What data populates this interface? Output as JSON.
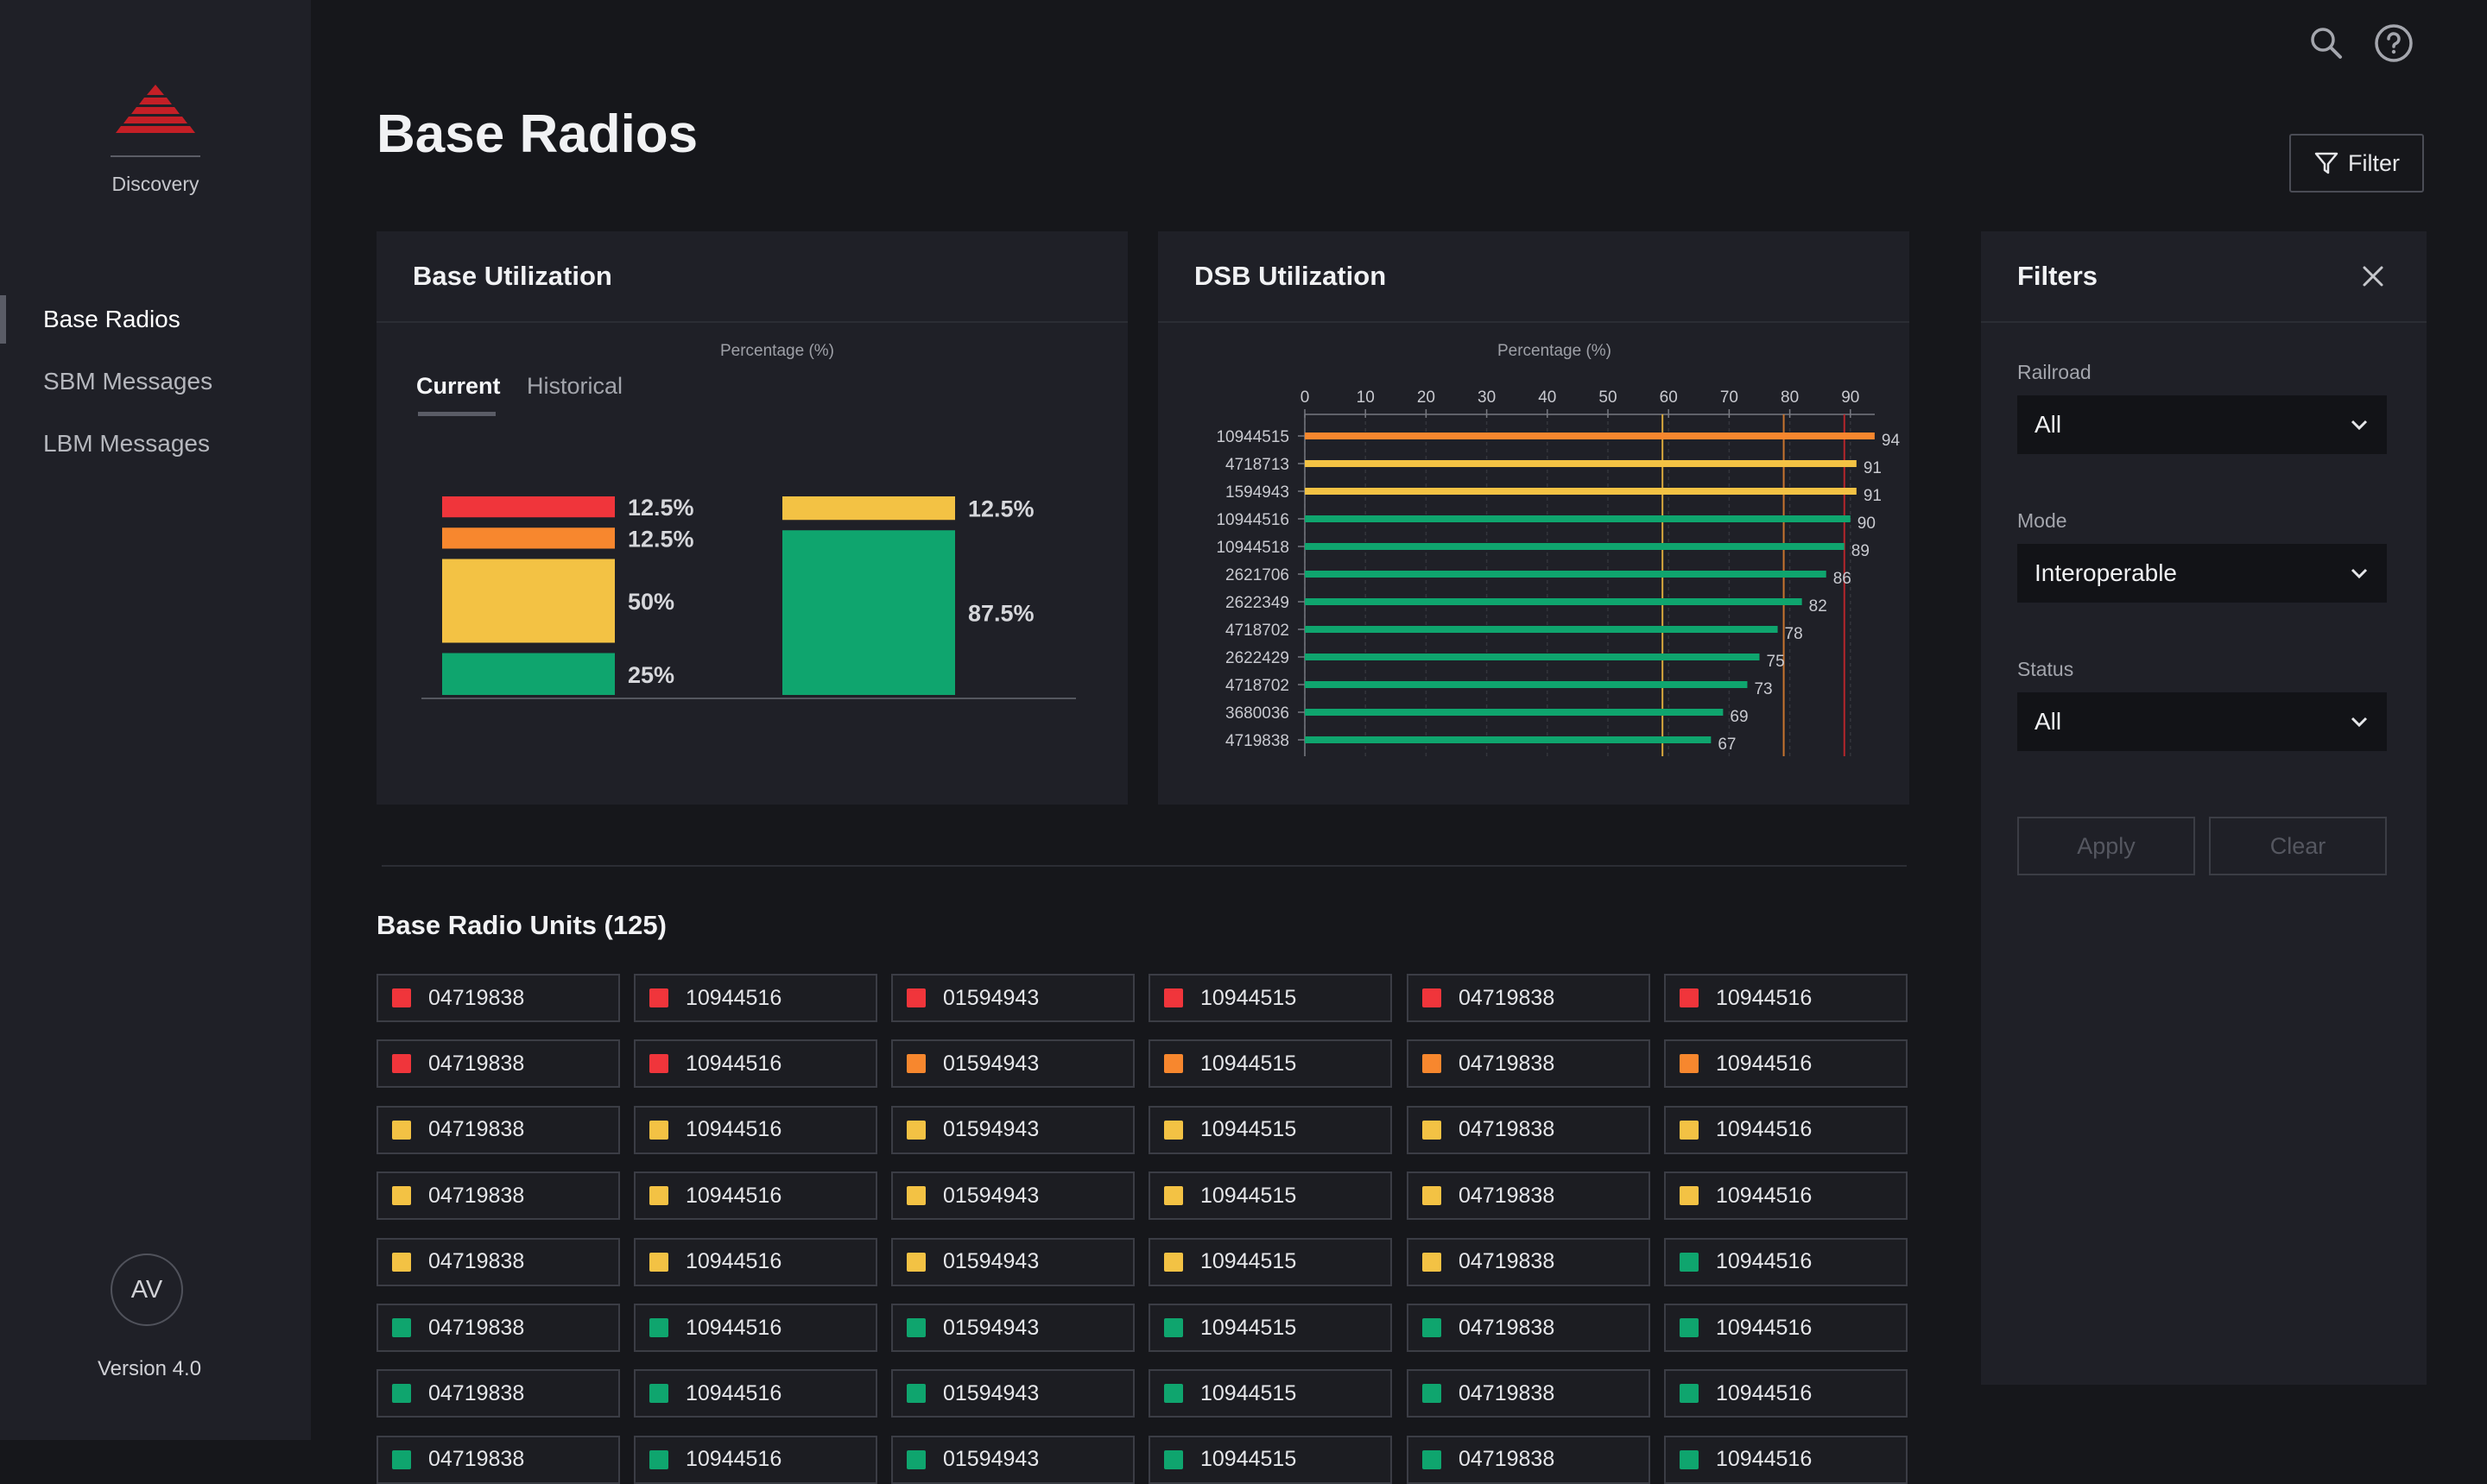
{
  "sidebar": {
    "brand": "Discovery",
    "nav": [
      "Base Radios",
      "SBM Messages",
      "LBM Messages"
    ],
    "avatar": "AV",
    "version": "Version 4.0"
  },
  "header": {
    "title": "Base Radios",
    "filter_label": "Filter",
    "icons": [
      "search-icon",
      "help-icon",
      "filter-icon"
    ]
  },
  "base_utilization": {
    "title": "Base Utilization",
    "axis_title": "Percentage (%)",
    "tabs": [
      "Current",
      "Historical"
    ],
    "active_tab": "Current"
  },
  "dsb_utilization": {
    "title": "DSB Utilization",
    "axis_title": "Percentage (%)"
  },
  "colors": {
    "red": "#f0353b",
    "orange": "#f7872e",
    "yellow": "#f3c244",
    "green": "#0fa56e",
    "threshold_yellow": "#d9a93d",
    "threshold_orange": "#c7742f",
    "threshold_red": "#b3262b"
  },
  "chart_data": [
    {
      "type": "bar",
      "title": "Base Utilization",
      "stacks": [
        {
          "segments": [
            {
              "color": "red",
              "value": 12.5,
              "label": "12.5%"
            },
            {
              "color": "orange",
              "value": 12.5,
              "label": "12.5%"
            },
            {
              "color": "yellow",
              "value": 50,
              "label": "50%"
            },
            {
              "color": "green",
              "value": 25,
              "label": "25%"
            }
          ]
        },
        {
          "segments": [
            {
              "color": "yellow",
              "value": 12.5,
              "label": "12.5%"
            },
            {
              "color": "green",
              "value": 87.5,
              "label": "87.5%"
            }
          ]
        }
      ]
    },
    {
      "type": "bar",
      "orientation": "horizontal",
      "title": "DSB Utilization",
      "xlabel": "Percentage (%)",
      "xticks": [
        0,
        10,
        20,
        30,
        40,
        50,
        60,
        70,
        80,
        90
      ],
      "xlim": [
        0,
        94
      ],
      "thresholds": [
        {
          "value": 59,
          "color": "threshold_yellow"
        },
        {
          "value": 79,
          "color": "threshold_orange"
        },
        {
          "value": 89,
          "color": "threshold_red"
        }
      ],
      "categories": [
        "10944515",
        "4718713",
        "1594943",
        "10944516",
        "10944518",
        "2621706",
        "2622349",
        "4718702",
        "2622429",
        "4718702",
        "3680036",
        "4719838"
      ],
      "values": [
        94,
        91,
        91,
        90,
        89,
        86,
        82,
        78,
        75,
        73,
        69,
        67
      ],
      "bar_colors": [
        "orange",
        "yellow",
        "yellow",
        "green",
        "green",
        "green",
        "green",
        "green",
        "green",
        "green",
        "green",
        "green"
      ]
    }
  ],
  "units": {
    "title": "Base Radio Units (125)",
    "ids": [
      "04719838",
      "10944516",
      "01594943",
      "10944515",
      "04719838",
      "10944516"
    ],
    "rows": [
      [
        "red",
        "red",
        "red",
        "red",
        "red",
        "red"
      ],
      [
        "red",
        "red",
        "orange",
        "orange",
        "orange",
        "orange"
      ],
      [
        "yellow",
        "yellow",
        "yellow",
        "yellow",
        "yellow",
        "yellow"
      ],
      [
        "yellow",
        "yellow",
        "yellow",
        "yellow",
        "yellow",
        "yellow"
      ],
      [
        "yellow",
        "yellow",
        "yellow",
        "yellow",
        "yellow",
        "green"
      ],
      [
        "green",
        "green",
        "green",
        "green",
        "green",
        "green"
      ],
      [
        "green",
        "green",
        "green",
        "green",
        "green",
        "green"
      ],
      [
        "green",
        "green",
        "green",
        "green",
        "green",
        "green"
      ]
    ]
  },
  "filters": {
    "title": "Filters",
    "railroad_label": "Railroad",
    "railroad_value": "All",
    "mode_label": "Mode",
    "mode_value": "Interoperable",
    "status_label": "Status",
    "status_value": "All",
    "apply_label": "Apply",
    "clear_label": "Clear"
  }
}
